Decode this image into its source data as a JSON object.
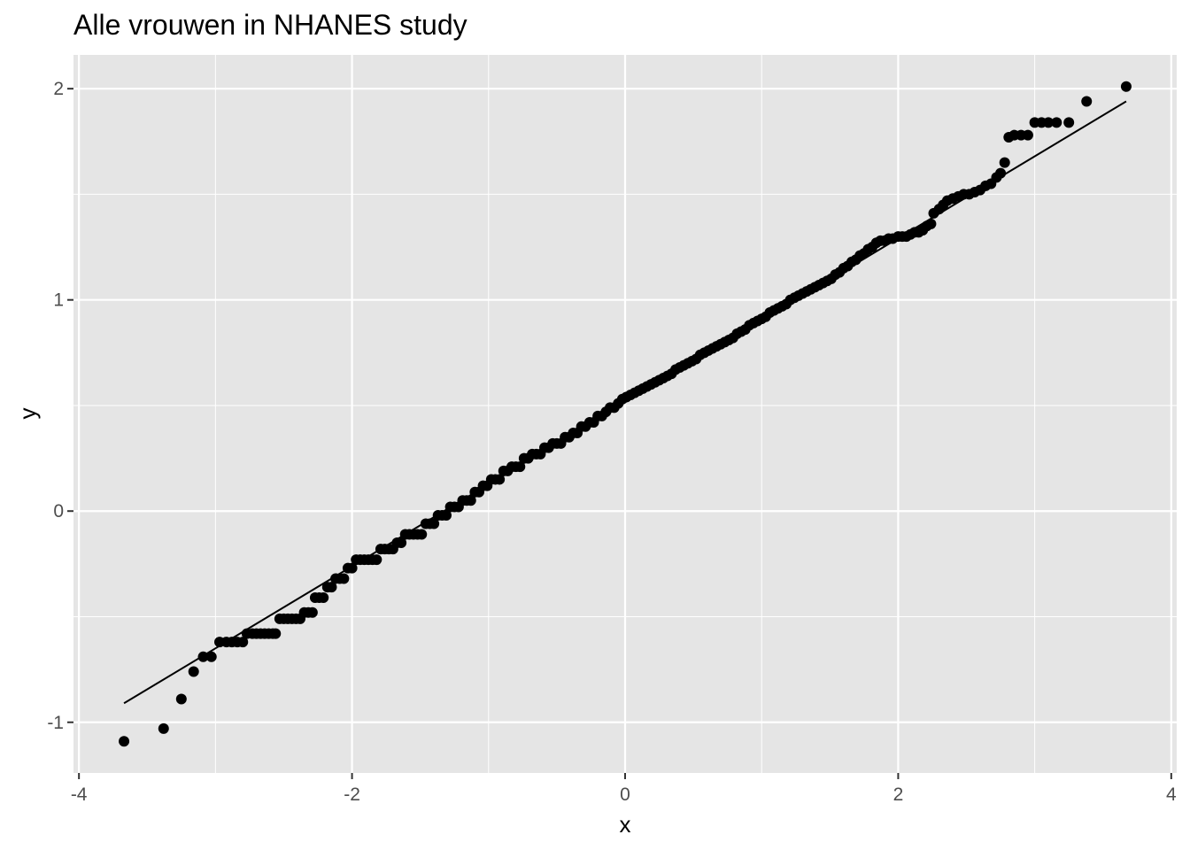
{
  "chart_data": {
    "type": "scatter",
    "title": "Alle vrouwen in NHANES study",
    "xlabel": "x",
    "ylabel": "y",
    "xlim": [
      -4.04,
      4.04
    ],
    "ylim": [
      -1.24,
      2.16
    ],
    "x_ticks": [
      -4,
      -2,
      0,
      2,
      4
    ],
    "x_tick_labels": [
      "-4",
      "-2",
      "0",
      "2",
      "4"
    ],
    "y_ticks": [
      -1,
      0,
      1,
      2
    ],
    "y_tick_labels": [
      "-1",
      "0",
      "1",
      "2"
    ],
    "grid": true,
    "legend": "none",
    "background": "#e5e5e5",
    "grid_color": "#ffffff",
    "point_color": "#000000",
    "line_color": "#000000",
    "reference_line": {
      "x": [
        -3.67,
        3.67
      ],
      "y": [
        -0.91,
        1.94
      ]
    },
    "series": [
      {
        "points": [
          [
            -3.67,
            -1.09
          ],
          [
            -3.38,
            -1.03
          ],
          [
            -3.25,
            -0.89
          ],
          [
            -3.16,
            -0.76
          ],
          [
            -3.09,
            -0.69
          ],
          [
            -3.03,
            -0.69
          ],
          [
            -2.97,
            -0.62
          ],
          [
            -2.92,
            -0.62
          ],
          [
            -2.88,
            -0.62
          ],
          [
            -2.84,
            -0.62
          ],
          [
            -2.8,
            -0.62
          ],
          [
            -2.77,
            -0.58
          ],
          [
            -2.73,
            -0.58
          ],
          [
            -2.7,
            -0.58
          ],
          [
            -2.67,
            -0.58
          ],
          [
            -2.64,
            -0.58
          ],
          [
            -2.61,
            -0.58
          ],
          [
            -2.58,
            -0.58
          ],
          [
            -2.56,
            -0.58
          ],
          [
            -2.53,
            -0.51
          ],
          [
            -2.5,
            -0.51
          ],
          [
            -2.47,
            -0.51
          ],
          [
            -2.44,
            -0.51
          ],
          [
            -2.41,
            -0.51
          ],
          [
            -2.38,
            -0.51
          ],
          [
            -2.35,
            -0.48
          ],
          [
            -2.32,
            -0.48
          ],
          [
            -2.29,
            -0.48
          ],
          [
            -2.27,
            -0.41
          ],
          [
            -2.24,
            -0.41
          ],
          [
            -2.21,
            -0.41
          ],
          [
            -2.18,
            -0.36
          ],
          [
            -2.15,
            -0.36
          ],
          [
            -2.12,
            -0.32
          ],
          [
            -2.09,
            -0.32
          ],
          [
            -2.06,
            -0.32
          ],
          [
            -2.03,
            -0.27
          ],
          [
            -2.0,
            -0.27
          ],
          [
            -1.97,
            -0.23
          ],
          [
            -1.94,
            -0.23
          ],
          [
            -1.91,
            -0.23
          ],
          [
            -1.88,
            -0.23
          ],
          [
            -1.85,
            -0.23
          ],
          [
            -1.82,
            -0.23
          ],
          [
            -1.79,
            -0.18
          ],
          [
            -1.76,
            -0.18
          ],
          [
            -1.73,
            -0.18
          ],
          [
            -1.7,
            -0.18
          ],
          [
            -1.67,
            -0.15
          ],
          [
            -1.64,
            -0.15
          ],
          [
            -1.61,
            -0.11
          ],
          [
            -1.58,
            -0.11
          ],
          [
            -1.55,
            -0.11
          ],
          [
            -1.52,
            -0.11
          ],
          [
            -1.49,
            -0.11
          ],
          [
            -1.46,
            -0.06
          ],
          [
            -1.43,
            -0.06
          ],
          [
            -1.4,
            -0.06
          ],
          [
            -1.37,
            -0.02
          ],
          [
            -1.34,
            -0.02
          ],
          [
            -1.31,
            -0.02
          ],
          [
            -1.28,
            0.02
          ],
          [
            -1.25,
            0.02
          ],
          [
            -1.22,
            0.02
          ],
          [
            -1.19,
            0.05
          ],
          [
            -1.16,
            0.05
          ],
          [
            -1.13,
            0.05
          ],
          [
            -1.1,
            0.09
          ],
          [
            -1.07,
            0.09
          ],
          [
            -1.04,
            0.12
          ],
          [
            -1.01,
            0.12
          ],
          [
            -0.98,
            0.15
          ],
          [
            -0.95,
            0.15
          ],
          [
            -0.92,
            0.15
          ],
          [
            -0.89,
            0.19
          ],
          [
            -0.86,
            0.19
          ],
          [
            -0.83,
            0.21
          ],
          [
            -0.8,
            0.21
          ],
          [
            -0.77,
            0.21
          ],
          [
            -0.74,
            0.25
          ],
          [
            -0.71,
            0.25
          ],
          [
            -0.68,
            0.27
          ],
          [
            -0.65,
            0.27
          ],
          [
            -0.62,
            0.27
          ],
          [
            -0.59,
            0.3
          ],
          [
            -0.56,
            0.3
          ],
          [
            -0.53,
            0.32
          ],
          [
            -0.5,
            0.32
          ],
          [
            -0.47,
            0.32
          ],
          [
            -0.44,
            0.35
          ],
          [
            -0.41,
            0.35
          ],
          [
            -0.38,
            0.37
          ],
          [
            -0.35,
            0.37
          ],
          [
            -0.32,
            0.4
          ],
          [
            -0.29,
            0.4
          ],
          [
            -0.26,
            0.42
          ],
          [
            -0.23,
            0.42
          ],
          [
            -0.2,
            0.45
          ],
          [
            -0.17,
            0.45
          ],
          [
            -0.14,
            0.47
          ],
          [
            -0.11,
            0.49
          ],
          [
            -0.08,
            0.49
          ],
          [
            -0.05,
            0.51
          ],
          [
            -0.02,
            0.53
          ],
          [
            0.01,
            0.54
          ],
          [
            0.04,
            0.55
          ],
          [
            0.07,
            0.56
          ],
          [
            0.1,
            0.57
          ],
          [
            0.13,
            0.58
          ],
          [
            0.16,
            0.59
          ],
          [
            0.19,
            0.6
          ],
          [
            0.22,
            0.61
          ],
          [
            0.25,
            0.62
          ],
          [
            0.28,
            0.63
          ],
          [
            0.31,
            0.64
          ],
          [
            0.34,
            0.65
          ],
          [
            0.37,
            0.67
          ],
          [
            0.4,
            0.68
          ],
          [
            0.43,
            0.69
          ],
          [
            0.46,
            0.7
          ],
          [
            0.49,
            0.71
          ],
          [
            0.52,
            0.72
          ],
          [
            0.55,
            0.74
          ],
          [
            0.58,
            0.75
          ],
          [
            0.61,
            0.76
          ],
          [
            0.64,
            0.77
          ],
          [
            0.67,
            0.78
          ],
          [
            0.7,
            0.79
          ],
          [
            0.73,
            0.8
          ],
          [
            0.76,
            0.81
          ],
          [
            0.79,
            0.82
          ],
          [
            0.82,
            0.84
          ],
          [
            0.85,
            0.85
          ],
          [
            0.88,
            0.86
          ],
          [
            0.91,
            0.88
          ],
          [
            0.94,
            0.89
          ],
          [
            0.97,
            0.9
          ],
          [
            1.0,
            0.91
          ],
          [
            1.03,
            0.92
          ],
          [
            1.06,
            0.94
          ],
          [
            1.09,
            0.95
          ],
          [
            1.12,
            0.96
          ],
          [
            1.15,
            0.97
          ],
          [
            1.18,
            0.98
          ],
          [
            1.21,
            1.0
          ],
          [
            1.24,
            1.01
          ],
          [
            1.27,
            1.02
          ],
          [
            1.3,
            1.03
          ],
          [
            1.33,
            1.04
          ],
          [
            1.36,
            1.05
          ],
          [
            1.39,
            1.06
          ],
          [
            1.42,
            1.07
          ],
          [
            1.45,
            1.08
          ],
          [
            1.48,
            1.09
          ],
          [
            1.51,
            1.1
          ],
          [
            1.54,
            1.12
          ],
          [
            1.57,
            1.13
          ],
          [
            1.6,
            1.15
          ],
          [
            1.63,
            1.16
          ],
          [
            1.66,
            1.18
          ],
          [
            1.69,
            1.19
          ],
          [
            1.72,
            1.21
          ],
          [
            1.75,
            1.22
          ],
          [
            1.78,
            1.24
          ],
          [
            1.81,
            1.25
          ],
          [
            1.84,
            1.27
          ],
          [
            1.87,
            1.28
          ],
          [
            1.9,
            1.28
          ],
          [
            1.93,
            1.29
          ],
          [
            1.96,
            1.29
          ],
          [
            2.0,
            1.3
          ],
          [
            2.03,
            1.3
          ],
          [
            2.06,
            1.3
          ],
          [
            2.09,
            1.31
          ],
          [
            2.12,
            1.32
          ],
          [
            2.15,
            1.32
          ],
          [
            2.18,
            1.33
          ],
          [
            2.21,
            1.35
          ],
          [
            2.24,
            1.36
          ],
          [
            2.26,
            1.41
          ],
          [
            2.3,
            1.43
          ],
          [
            2.33,
            1.45
          ],
          [
            2.36,
            1.47
          ],
          [
            2.4,
            1.48
          ],
          [
            2.44,
            1.49
          ],
          [
            2.48,
            1.5
          ],
          [
            2.52,
            1.5
          ],
          [
            2.56,
            1.51
          ],
          [
            2.6,
            1.52
          ],
          [
            2.64,
            1.54
          ],
          [
            2.68,
            1.55
          ],
          [
            2.72,
            1.58
          ],
          [
            2.75,
            1.6
          ],
          [
            2.78,
            1.65
          ],
          [
            2.81,
            1.77
          ],
          [
            2.85,
            1.78
          ],
          [
            2.9,
            1.78
          ],
          [
            2.95,
            1.78
          ],
          [
            3.0,
            1.84
          ],
          [
            3.05,
            1.84
          ],
          [
            3.1,
            1.84
          ],
          [
            3.16,
            1.84
          ],
          [
            3.25,
            1.84
          ],
          [
            3.38,
            1.94
          ],
          [
            3.67,
            2.01
          ]
        ]
      }
    ]
  }
}
